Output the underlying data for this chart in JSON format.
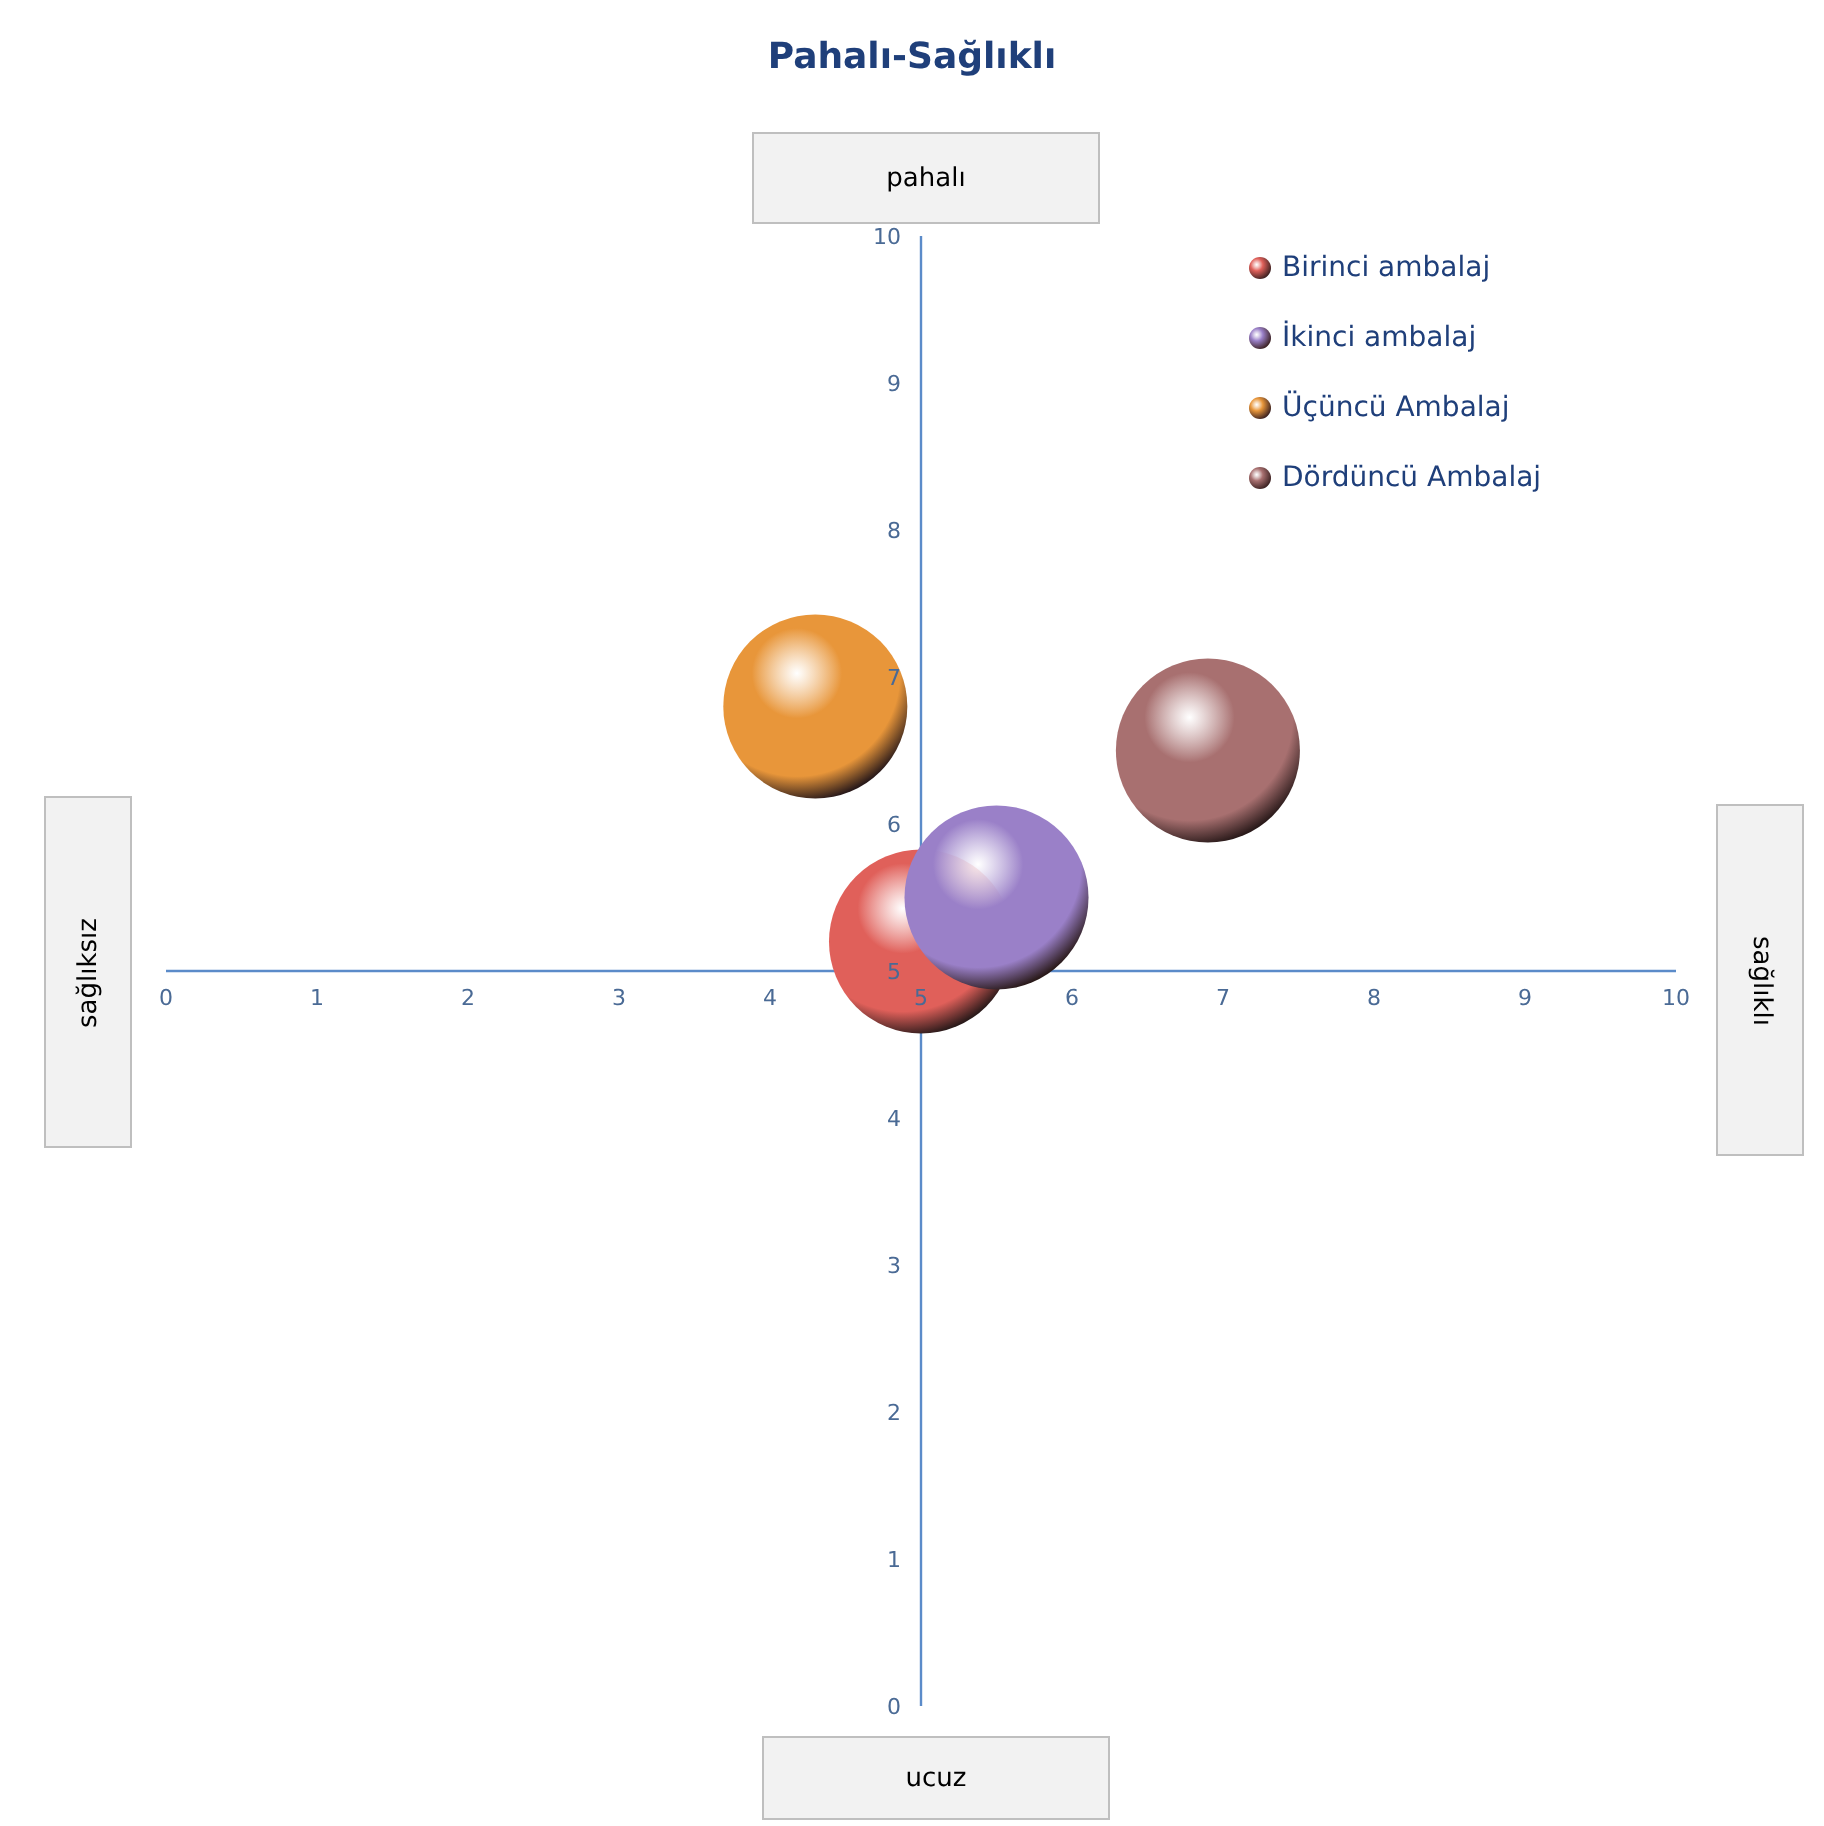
{
  "chart_data": {
    "type": "bubble",
    "title": "Pahalı-Sağlıklı",
    "annotations": [
      "pahalı",
      "sağlıklı",
      "ucuz",
      "sağlıksız"
    ],
    "series": [
      {
        "name": "Birinci ambalaj",
        "color": "#e0605a",
        "x": [
          5
        ],
        "values": [
          5.2
        ],
        "sizes": [
          1
        ]
      },
      {
        "name": "İkinci ambalaj",
        "color": "#9a80c8",
        "x": [
          5.5
        ],
        "values": [
          5.5
        ],
        "sizes": [
          1
        ]
      },
      {
        "name": "Üçüncü Ambalaj",
        "color": "#e8963a",
        "x": [
          4.3
        ],
        "values": [
          6.8
        ],
        "sizes": [
          1
        ]
      },
      {
        "name": "Dördüncü Ambalaj",
        "color": "#a87070",
        "x": [
          6.9
        ],
        "values": [
          6.5
        ],
        "sizes": [
          1
        ]
      }
    ],
    "xlim": [
      0,
      10
    ],
    "xticks": [
      0,
      1,
      2,
      3,
      4,
      5,
      6,
      7,
      8,
      9,
      10
    ],
    "ylim": [
      0,
      10
    ],
    "yticks": [
      0,
      1,
      2,
      3,
      4,
      5,
      6,
      7,
      8,
      9,
      10
    ],
    "marker": "circle",
    "grid": false,
    "legend": "top right"
  }
}
